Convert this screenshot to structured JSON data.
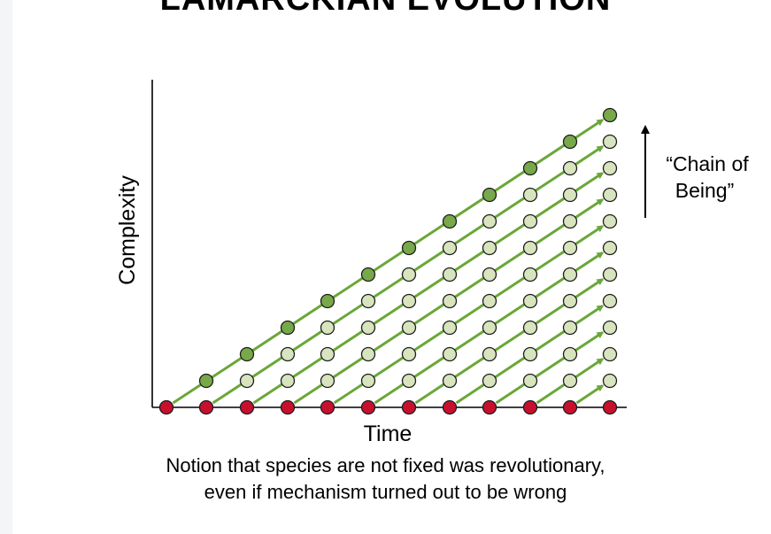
{
  "slide": {
    "title": "LAMARCKIAN EVOLUTION",
    "caption_line1": "Notion that species are not fixed was revolutionary,",
    "caption_line2": "even if mechanism turned out to be wrong"
  },
  "diagram": {
    "y_axis_label": "Complexity",
    "x_axis_label": "Time",
    "chain_label_line1": "“Chain of",
    "chain_label_line2": "Being”",
    "lineage_count": 12,
    "levels": 12,
    "colors": {
      "origin_dot": "#c8102e",
      "intermediate_dot": "#d7e4bd",
      "top_dot": "#77a84a",
      "arrow": "#6aa737",
      "axis": "#000000"
    }
  }
}
